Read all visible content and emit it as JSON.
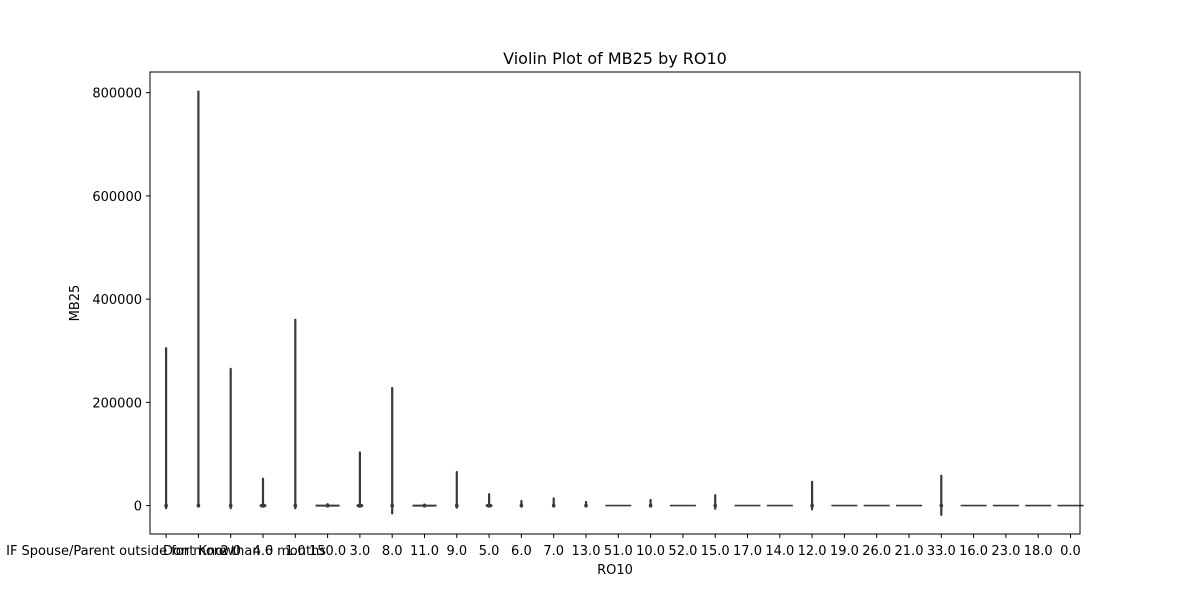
{
  "chart_data": {
    "type": "violin",
    "title": "Violin Plot of MB25 by RO10",
    "xlabel": "RO10",
    "ylabel": "MB25",
    "ylim": [
      -55000,
      840000
    ],
    "yticks": [
      0,
      200000,
      400000,
      600000,
      800000
    ],
    "ytick_labels": [
      "0",
      "200000",
      "400000",
      "600000",
      "800000"
    ],
    "grid": false,
    "legend": "none",
    "line_color": "#3a3a3a",
    "categories": [
      "IF Spouse/Parent outside for more than 6 months",
      "Dont Know",
      "2.0",
      "4.0",
      "1.0",
      "150.0",
      "3.0",
      "8.0",
      "11.0",
      "9.0",
      "5.0",
      "6.0",
      "7.0",
      "13.0",
      "51.0",
      "10.0",
      "52.0",
      "15.0",
      "17.0",
      "14.0",
      "12.0",
      "19.0",
      "26.0",
      "21.0",
      "33.0",
      "16.0",
      "23.0",
      "18.0",
      "0.0"
    ],
    "violins": [
      {
        "category": "IF Spouse/Parent outside for more than 6 months",
        "min": -5000,
        "max": 305000,
        "q1": 0,
        "q3": 0
      },
      {
        "category": "Dont Know",
        "min": -1000,
        "max": 802000,
        "q1": 0,
        "q3": 0
      },
      {
        "category": "2.0",
        "min": -5000,
        "max": 265000,
        "q1": 0,
        "q3": 0
      },
      {
        "category": "4.0",
        "min": -2000,
        "max": 52000,
        "q1": 0,
        "q3": 1000
      },
      {
        "category": "1.0",
        "min": -5000,
        "max": 360000,
        "q1": 0,
        "q3": 0
      },
      {
        "category": "150.0",
        "min": -1000,
        "max": 3000,
        "q1": 0,
        "q3": 0
      },
      {
        "category": "3.0",
        "min": -2000,
        "max": 103000,
        "q1": 0,
        "q3": 1000
      },
      {
        "category": "8.0",
        "min": -15000,
        "max": 228000,
        "q1": 0,
        "q3": 0
      },
      {
        "category": "11.0",
        "min": -1000,
        "max": 2000,
        "q1": 0,
        "q3": 0
      },
      {
        "category": "9.0",
        "min": -4000,
        "max": 65000,
        "q1": 0,
        "q3": 0
      },
      {
        "category": "5.0",
        "min": -1000,
        "max": 22000,
        "q1": 0,
        "q3": 1000
      },
      {
        "category": "6.0",
        "min": -1000,
        "max": 9000,
        "q1": 0,
        "q3": 0
      },
      {
        "category": "7.0",
        "min": -1000,
        "max": 14000,
        "q1": 0,
        "q3": 0
      },
      {
        "category": "13.0",
        "min": -1000,
        "max": 7000,
        "q1": 0,
        "q3": 0
      },
      {
        "category": "51.0",
        "min": 0,
        "max": 0,
        "q1": 0,
        "q3": 0
      },
      {
        "category": "10.0",
        "min": -1000,
        "max": 11000,
        "q1": 0,
        "q3": 0
      },
      {
        "category": "52.0",
        "min": 0,
        "max": 0,
        "q1": 0,
        "q3": 0
      },
      {
        "category": "15.0",
        "min": -6000,
        "max": 20000,
        "q1": 0,
        "q3": 0
      },
      {
        "category": "17.0",
        "min": 0,
        "max": 0,
        "q1": 0,
        "q3": 0
      },
      {
        "category": "14.0",
        "min": 0,
        "max": 0,
        "q1": 0,
        "q3": 0
      },
      {
        "category": "12.0",
        "min": -7000,
        "max": 46000,
        "q1": 0,
        "q3": 0
      },
      {
        "category": "19.0",
        "min": 0,
        "max": 0,
        "q1": 0,
        "q3": 0
      },
      {
        "category": "26.0",
        "min": 0,
        "max": 0,
        "q1": 0,
        "q3": 0
      },
      {
        "category": "21.0",
        "min": 0,
        "max": 0,
        "q1": 0,
        "q3": 0
      },
      {
        "category": "33.0",
        "min": -18000,
        "max": 58000,
        "q1": 0,
        "q3": 0
      },
      {
        "category": "16.0",
        "min": 0,
        "max": 0,
        "q1": 0,
        "q3": 0
      },
      {
        "category": "23.0",
        "min": 0,
        "max": 0,
        "q1": 0,
        "q3": 0
      },
      {
        "category": "18.0",
        "min": 0,
        "max": 0,
        "q1": 0,
        "q3": 0
      },
      {
        "category": "0.0",
        "min": 0,
        "max": 0,
        "q1": 0,
        "q3": 0
      }
    ]
  }
}
